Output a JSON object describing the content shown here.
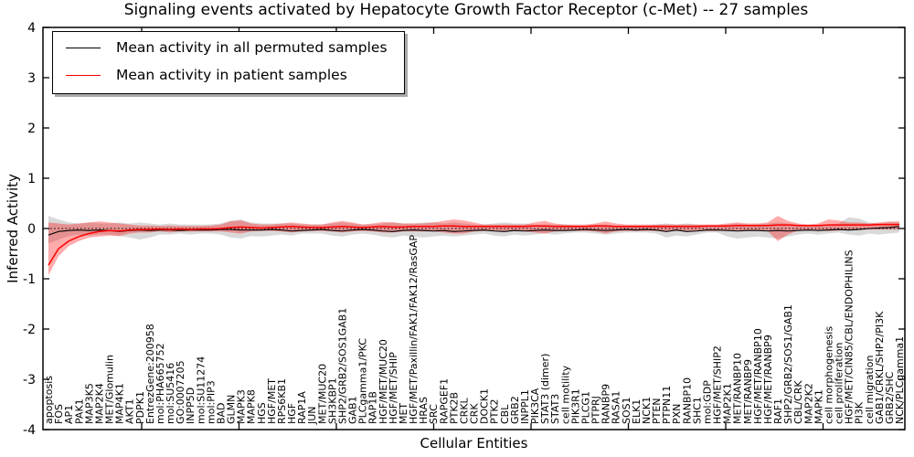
{
  "figure": {
    "title": "Signaling events activated by Hepatocyte Growth Factor Receptor (c-Met) -- 27 samples",
    "xlabel": "Cellular Entities",
    "ylabel": "Inferred Activity"
  },
  "legend": {
    "items": [
      {
        "label": "Mean activity in all permuted samples",
        "color": "#000000"
      },
      {
        "label": "Mean activity in patient samples",
        "color": "#ff0000"
      }
    ]
  },
  "chart_data": {
    "type": "line",
    "title": "Signaling events activated by Hepatocyte Growth Factor Receptor (c-Met) -- 27 samples",
    "xlabel": "Cellular Entities",
    "ylabel": "Inferred Activity",
    "ylim": [
      -4,
      4
    ],
    "yticks": [
      -4,
      -3,
      -2,
      -1,
      0,
      1,
      2,
      3,
      4
    ],
    "grid": false,
    "legend_position": "upper left",
    "reference_line": {
      "y": 0,
      "style": "dotted",
      "color": "#000000"
    },
    "categories": [
      "apoptosis",
      "FOS",
      "AP1",
      "PAK1",
      "MAP3K5",
      "MAP2K4",
      "MET/Glomulin",
      "MAP4K1",
      "AKT1",
      "PDPK1",
      "EntrezGene:200958",
      "mol:PHA665752",
      "mol:SU5416",
      "GO:0007205",
      "INPP5D",
      "mol:SU11274",
      "mol:PIP3",
      "BAD",
      "GLMN",
      "MAPK3",
      "MAPK8",
      "HGS",
      "HGF/MET",
      "RPS6KB1",
      "HGF",
      "RAP1A",
      "JUN",
      "MET/MUC20",
      "SH3KBP1",
      "SHP2/GRB2/SOS1GAB1",
      "GAB1",
      "PLCgamma1/PKC",
      "RAP1B",
      "HGF/MET/MUC20",
      "HGF/MET/SHIP",
      "MET",
      "HGF/MET/Paxillin/FAK1/FAK12/RasGAP",
      "HRAS",
      "SRC",
      "RAPGEF1",
      "PTK2B",
      "CRKL",
      "CRK",
      "DOCK1",
      "PTK2",
      "CBL",
      "GRB2",
      "INPPL1",
      "PIK3CA",
      "STAT3 (dimer)",
      "STAT3",
      "cell motility",
      "PIK3R1",
      "PLCG1",
      "PTPRJ",
      "RANBP9",
      "RASA1",
      "SOS1",
      "ELK1",
      "NCK1",
      "PTEN",
      "PTPN11",
      "PXN",
      "RANBP10",
      "SHC1",
      "mol:GDP",
      "HGF/MET/SHIP2",
      "MAP2K1",
      "MET/RANBP10",
      "MET/RANBP9",
      "HGF/MET/RANBP10",
      "HGF/MET/RANBP9",
      "RAF1",
      "SHP2/GRB2/SOS1/GAB1",
      "CBL/CRK",
      "MAP2K2",
      "MAPK1",
      "cell morphogenesis",
      "cell proliferation",
      "HGF/MET/CIN85/CBL/ENDOPHILINS",
      "PI3K",
      "cell migration",
      "GAB1/CRKL/SHP2/PI3K",
      "GRB2/SHC",
      "NCK/PLCgamma1"
    ],
    "series": [
      {
        "name": "Mean activity in all permuted samples",
        "color": "#000000",
        "values": [
          -0.13,
          -0.06,
          -0.04,
          -0.03,
          -0.04,
          -0.03,
          -0.04,
          -0.06,
          -0.04,
          -0.03,
          -0.04,
          -0.03,
          -0.03,
          -0.04,
          -0.03,
          -0.03,
          -0.03,
          -0.02,
          -0.02,
          -0.03,
          -0.03,
          -0.03,
          -0.02,
          -0.03,
          -0.05,
          -0.04,
          -0.03,
          -0.02,
          -0.04,
          -0.05,
          -0.03,
          -0.02,
          -0.03,
          -0.05,
          -0.06,
          -0.04,
          -0.03,
          -0.04,
          -0.05,
          -0.04,
          -0.06,
          -0.05,
          -0.04,
          -0.03,
          -0.05,
          -0.06,
          -0.04,
          -0.05,
          -0.04,
          -0.03,
          -0.04,
          -0.04,
          -0.03,
          -0.02,
          -0.03,
          -0.04,
          -0.03,
          -0.02,
          -0.03,
          -0.02,
          -0.03,
          -0.06,
          -0.03,
          -0.06,
          -0.05,
          -0.03,
          -0.03,
          -0.04,
          -0.05,
          -0.04,
          -0.04,
          -0.05,
          -0.04,
          -0.05,
          -0.04,
          -0.03,
          -0.04,
          -0.03,
          -0.02,
          -0.03,
          -0.02,
          0.0,
          0.01,
          0.02,
          0.04
        ]
      },
      {
        "name": "Mean activity in patient samples",
        "color": "#ff0000",
        "values": [
          -0.73,
          -0.4,
          -0.25,
          -0.16,
          -0.1,
          -0.06,
          -0.04,
          -0.05,
          -0.03,
          -0.02,
          -0.02,
          -0.01,
          -0.02,
          -0.01,
          -0.02,
          -0.01,
          -0.01,
          0.0,
          0.02,
          0.03,
          0.02,
          0.01,
          0.02,
          0.03,
          0.04,
          0.03,
          0.02,
          0.02,
          0.03,
          0.04,
          0.03,
          0.02,
          0.03,
          0.04,
          0.03,
          0.03,
          0.04,
          0.04,
          0.04,
          0.05,
          0.05,
          0.04,
          0.04,
          0.04,
          0.04,
          0.04,
          0.04,
          0.04,
          0.05,
          0.05,
          0.04,
          0.04,
          0.04,
          0.04,
          0.05,
          0.05,
          0.04,
          0.04,
          0.04,
          0.04,
          0.04,
          0.04,
          0.04,
          0.04,
          0.04,
          0.05,
          0.05,
          0.05,
          0.06,
          0.06,
          0.06,
          0.06,
          0.07,
          0.07,
          0.06,
          0.06,
          0.06,
          0.07,
          0.07,
          0.07,
          0.07,
          0.07,
          0.08,
          0.08,
          0.08
        ]
      }
    ],
    "bands": [
      {
        "name": "permuted-range",
        "color": "rgba(130,130,130,0.30)",
        "upper": [
          0.25,
          0.18,
          0.12,
          0.1,
          0.12,
          0.1,
          0.1,
          0.12,
          0.1,
          0.12,
          0.1,
          0.08,
          0.1,
          0.08,
          0.08,
          0.08,
          0.08,
          0.1,
          0.16,
          0.18,
          0.12,
          0.1,
          0.1,
          0.1,
          0.1,
          0.08,
          0.08,
          0.08,
          0.1,
          0.12,
          0.1,
          0.08,
          0.08,
          0.1,
          0.12,
          0.1,
          0.1,
          0.12,
          0.12,
          0.1,
          0.12,
          0.1,
          0.08,
          0.08,
          0.1,
          0.12,
          0.1,
          0.1,
          0.08,
          0.08,
          0.08,
          0.08,
          0.06,
          0.06,
          0.08,
          0.08,
          0.06,
          0.06,
          0.06,
          0.06,
          0.08,
          0.1,
          0.08,
          0.1,
          0.08,
          0.06,
          0.06,
          0.08,
          0.1,
          0.08,
          0.08,
          0.1,
          0.12,
          0.1,
          0.08,
          0.06,
          0.08,
          0.08,
          0.1,
          0.22,
          0.2,
          0.12,
          0.1,
          0.12,
          0.12
        ],
        "lower": [
          -0.3,
          -0.22,
          -0.15,
          -0.12,
          -0.14,
          -0.12,
          -0.12,
          -0.15,
          -0.18,
          -0.22,
          -0.18,
          -0.12,
          -0.12,
          -0.1,
          -0.12,
          -0.1,
          -0.1,
          -0.12,
          -0.18,
          -0.2,
          -0.15,
          -0.16,
          -0.14,
          -0.12,
          -0.14,
          -0.1,
          -0.1,
          -0.1,
          -0.14,
          -0.16,
          -0.12,
          -0.1,
          -0.12,
          -0.16,
          -0.18,
          -0.14,
          -0.16,
          -0.18,
          -0.16,
          -0.14,
          -0.16,
          -0.14,
          -0.12,
          -0.1,
          -0.14,
          -0.16,
          -0.12,
          -0.14,
          -0.12,
          -0.1,
          -0.12,
          -0.1,
          -0.08,
          -0.08,
          -0.1,
          -0.12,
          -0.1,
          -0.08,
          -0.08,
          -0.08,
          -0.1,
          -0.18,
          -0.14,
          -0.16,
          -0.12,
          -0.08,
          -0.08,
          -0.16,
          -0.2,
          -0.18,
          -0.16,
          -0.18,
          -0.2,
          -0.16,
          -0.12,
          -0.1,
          -0.12,
          -0.1,
          -0.08,
          -0.12,
          -0.14,
          -0.1,
          -0.12,
          -0.1,
          -0.08
        ]
      },
      {
        "name": "patient-range",
        "color": "rgba(255,0,0,0.33)",
        "upper": [
          0.12,
          0.1,
          0.08,
          0.1,
          0.12,
          0.14,
          0.12,
          0.1,
          0.08,
          0.06,
          0.06,
          0.05,
          0.06,
          0.05,
          0.05,
          0.05,
          0.06,
          0.08,
          0.14,
          0.16,
          0.1,
          0.08,
          0.08,
          0.1,
          0.12,
          0.1,
          0.08,
          0.08,
          0.12,
          0.15,
          0.12,
          0.08,
          0.1,
          0.13,
          0.12,
          0.1,
          0.1,
          0.1,
          0.12,
          0.15,
          0.18,
          0.16,
          0.12,
          0.08,
          0.08,
          0.08,
          0.08,
          0.08,
          0.12,
          0.15,
          0.1,
          0.08,
          0.08,
          0.08,
          0.1,
          0.14,
          0.1,
          0.08,
          0.08,
          0.08,
          0.08,
          0.08,
          0.08,
          0.08,
          0.08,
          0.08,
          0.08,
          0.1,
          0.12,
          0.1,
          0.1,
          0.12,
          0.25,
          0.15,
          0.1,
          0.08,
          0.1,
          0.18,
          0.16,
          0.12,
          0.12,
          0.1,
          0.12,
          0.14,
          0.14
        ],
        "lower": [
          -0.93,
          -0.55,
          -0.35,
          -0.25,
          -0.18,
          -0.16,
          -0.14,
          -0.15,
          -0.1,
          -0.08,
          -0.08,
          -0.06,
          -0.08,
          -0.06,
          -0.06,
          -0.06,
          -0.06,
          -0.06,
          -0.08,
          -0.1,
          -0.06,
          -0.05,
          -0.05,
          -0.06,
          -0.08,
          -0.06,
          -0.05,
          -0.05,
          -0.06,
          -0.08,
          -0.06,
          -0.05,
          -0.06,
          -0.08,
          -0.08,
          -0.06,
          -0.06,
          -0.06,
          -0.06,
          -0.08,
          -0.1,
          -0.1,
          -0.06,
          -0.05,
          -0.05,
          -0.05,
          -0.05,
          -0.06,
          -0.08,
          -0.1,
          -0.06,
          -0.05,
          -0.05,
          -0.05,
          -0.06,
          -0.1,
          -0.06,
          -0.05,
          -0.05,
          -0.05,
          -0.05,
          -0.05,
          -0.05,
          -0.05,
          -0.05,
          -0.05,
          -0.05,
          -0.04,
          -0.04,
          -0.04,
          -0.04,
          -0.05,
          -0.25,
          -0.12,
          -0.04,
          -0.04,
          -0.04,
          -0.05,
          -0.04,
          -0.03,
          -0.03,
          -0.02,
          -0.02,
          -0.02,
          -0.02
        ]
      }
    ]
  }
}
